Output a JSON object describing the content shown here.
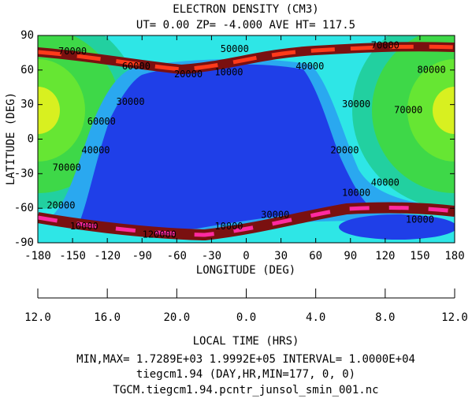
{
  "chart_data": {
    "type": "contour",
    "title": "ELECTRON DENSITY (CM3)",
    "subtitle": "UT= 0.00 ZP= -4.000 AVE HT= 117.5",
    "xlabel": "LONGITUDE (DEG)",
    "ylabel": "LATITUDE (DEG)",
    "xlim": [
      -180,
      180
    ],
    "ylim": [
      -90,
      90
    ],
    "xticks": [
      -180,
      -150,
      -120,
      -90,
      -60,
      -30,
      0,
      30,
      60,
      90,
      120,
      150,
      180
    ],
    "yticks": [
      -90,
      -60,
      -30,
      0,
      30,
      60,
      90
    ],
    "x2label": "LOCAL TIME (HRS)",
    "x2lim": [
      12,
      36
    ],
    "x2ticks": [
      {
        "value": 12,
        "label": "12.0"
      },
      {
        "value": 16,
        "label": "16.0"
      },
      {
        "value": 20,
        "label": "20.0"
      },
      {
        "value": 24,
        "label": "0.0"
      },
      {
        "value": 28,
        "label": "4.0"
      },
      {
        "value": 32,
        "label": "8.0"
      },
      {
        "value": 36,
        "label": "12.0"
      }
    ],
    "contour_labels": [
      {
        "value": 70000,
        "lon": -150,
        "lat": 76
      },
      {
        "value": 60000,
        "lon": -95,
        "lat": 63
      },
      {
        "value": 50000,
        "lon": -10,
        "lat": 78
      },
      {
        "value": 40000,
        "lon": 55,
        "lat": 63
      },
      {
        "value": 70000,
        "lon": 120,
        "lat": 81
      },
      {
        "value": 80000,
        "lon": 160,
        "lat": 60
      },
      {
        "value": 20000,
        "lon": -50,
        "lat": 56
      },
      {
        "value": 10000,
        "lon": -15,
        "lat": 58
      },
      {
        "value": 30000,
        "lon": -100,
        "lat": 32
      },
      {
        "value": 60000,
        "lon": -125,
        "lat": 15
      },
      {
        "value": 40000,
        "lon": -130,
        "lat": -10
      },
      {
        "value": 70000,
        "lon": -155,
        "lat": -25
      },
      {
        "value": 30000,
        "lon": 95,
        "lat": 30
      },
      {
        "value": 70000,
        "lon": 140,
        "lat": 25
      },
      {
        "value": 20000,
        "lon": 85,
        "lat": -10
      },
      {
        "value": 40000,
        "lon": 120,
        "lat": -38
      },
      {
        "value": 20000,
        "lon": -160,
        "lat": -58
      },
      {
        "value": 10000,
        "lon": -140,
        "lat": -76
      },
      {
        "value": 120000,
        "lon": -75,
        "lat": -83
      },
      {
        "value": 10000,
        "lon": -15,
        "lat": -76
      },
      {
        "value": 30000,
        "lon": 25,
        "lat": -66
      },
      {
        "value": 10000,
        "lon": 95,
        "lat": -47
      },
      {
        "value": 10000,
        "lon": 150,
        "lat": -70
      }
    ],
    "footer": [
      "MIN,MAX=  1.7289E+03  1.9992E+05 INTERVAL=  1.0000E+04",
      "tiegcm1.94 (DAY,HR,MIN=177, 0, 0)",
      "TGCM.tiegcm1.94.pcntr_junsol_smin_001.nc"
    ]
  }
}
